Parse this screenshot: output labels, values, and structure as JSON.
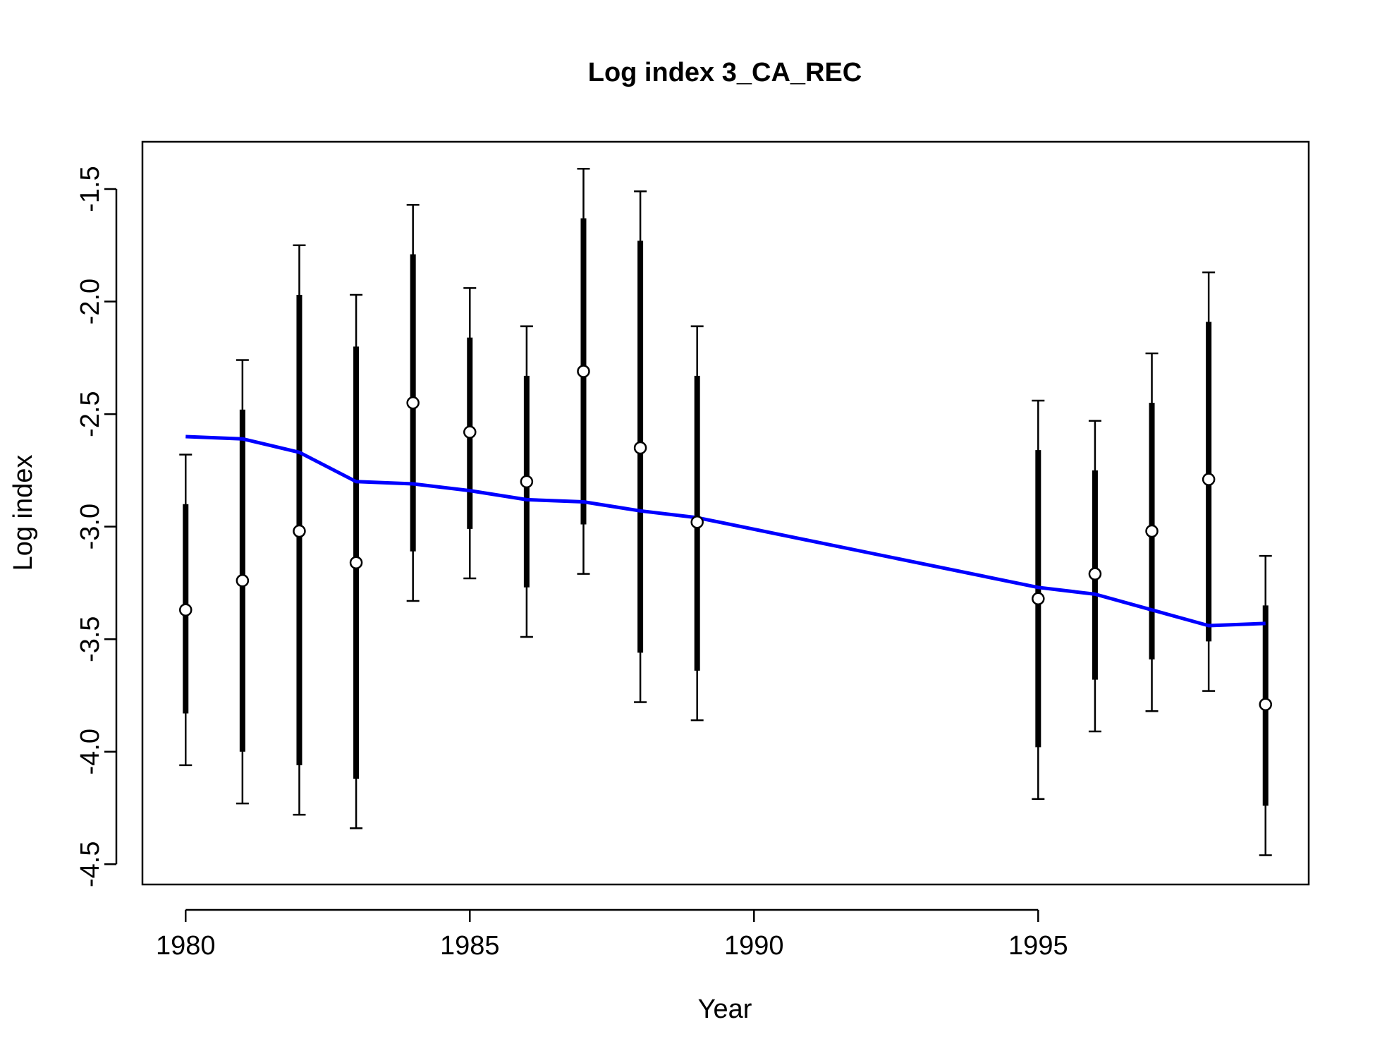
{
  "chart_data": {
    "type": "scatter",
    "title": "Log index 3_CA_REC",
    "xlabel": "Year",
    "ylabel": "Log index",
    "xlim": [
      1979.24,
      1999.76
    ],
    "ylim": [
      -4.59,
      -1.29
    ],
    "x_ticks": [
      "1980",
      "1985",
      "1990",
      "1995"
    ],
    "y_ticks": [
      "-1.5",
      "-2.0",
      "-2.5",
      "-3.0",
      "-3.5",
      "-4.0",
      "-4.5"
    ],
    "grid": false,
    "legend": "none",
    "colors": {
      "fit_line": "#0000ff",
      "points": "#000000",
      "point_fill": "#ffffff"
    },
    "observed": [
      {
        "year": 1980,
        "value": -3.37,
        "thick_low": -3.83,
        "thick_high": -2.9,
        "thin_low": -4.06,
        "thin_high": -2.68
      },
      {
        "year": 1981,
        "value": -3.24,
        "thick_low": -4.0,
        "thick_high": -2.48,
        "thin_low": -4.23,
        "thin_high": -2.26
      },
      {
        "year": 1982,
        "value": -3.02,
        "thick_low": -4.06,
        "thick_high": -1.97,
        "thin_low": -4.28,
        "thin_high": -1.75
      },
      {
        "year": 1983,
        "value": -3.16,
        "thick_low": -4.12,
        "thick_high": -2.2,
        "thin_low": -4.34,
        "thin_high": -1.97
      },
      {
        "year": 1984,
        "value": -2.45,
        "thick_low": -3.11,
        "thick_high": -1.79,
        "thin_low": -3.33,
        "thin_high": -1.57
      },
      {
        "year": 1985,
        "value": -2.58,
        "thick_low": -3.01,
        "thick_high": -2.16,
        "thin_low": -3.23,
        "thin_high": -1.94
      },
      {
        "year": 1986,
        "value": -2.8,
        "thick_low": -3.27,
        "thick_high": -2.33,
        "thin_low": -3.49,
        "thin_high": -2.11
      },
      {
        "year": 1987,
        "value": -2.31,
        "thick_low": -2.99,
        "thick_high": -1.63,
        "thin_low": -3.21,
        "thin_high": -1.41
      },
      {
        "year": 1988,
        "value": -2.65,
        "thick_low": -3.56,
        "thick_high": -1.73,
        "thin_low": -3.78,
        "thin_high": -1.51
      },
      {
        "year": 1989,
        "value": -2.98,
        "thick_low": -3.64,
        "thick_high": -2.33,
        "thin_low": -3.86,
        "thin_high": -2.11
      },
      {
        "year": 1995,
        "value": -3.32,
        "thick_low": -3.98,
        "thick_high": -2.66,
        "thin_low": -4.21,
        "thin_high": -2.44
      },
      {
        "year": 1996,
        "value": -3.21,
        "thick_low": -3.68,
        "thick_high": -2.75,
        "thin_low": -3.91,
        "thin_high": -2.53
      },
      {
        "year": 1997,
        "value": -3.02,
        "thick_low": -3.59,
        "thick_high": -2.45,
        "thin_low": -3.82,
        "thin_high": -2.23
      },
      {
        "year": 1998,
        "value": -2.79,
        "thick_low": -3.51,
        "thick_high": -2.09,
        "thin_low": -3.73,
        "thin_high": -1.87
      },
      {
        "year": 1999,
        "value": -3.79,
        "thick_low": -4.24,
        "thick_high": -3.35,
        "thin_low": -4.46,
        "thin_high": -3.13
      }
    ],
    "expected": {
      "x": [
        1980,
        1981,
        1982,
        1983,
        1984,
        1985,
        1986,
        1987,
        1988,
        1989,
        1995,
        1996,
        1997,
        1998,
        1999
      ],
      "y": [
        -2.6,
        -2.61,
        -2.67,
        -2.8,
        -2.81,
        -2.84,
        -2.88,
        -2.89,
        -2.93,
        -2.96,
        -3.27,
        -3.3,
        -3.37,
        -3.44,
        -3.43
      ]
    }
  }
}
